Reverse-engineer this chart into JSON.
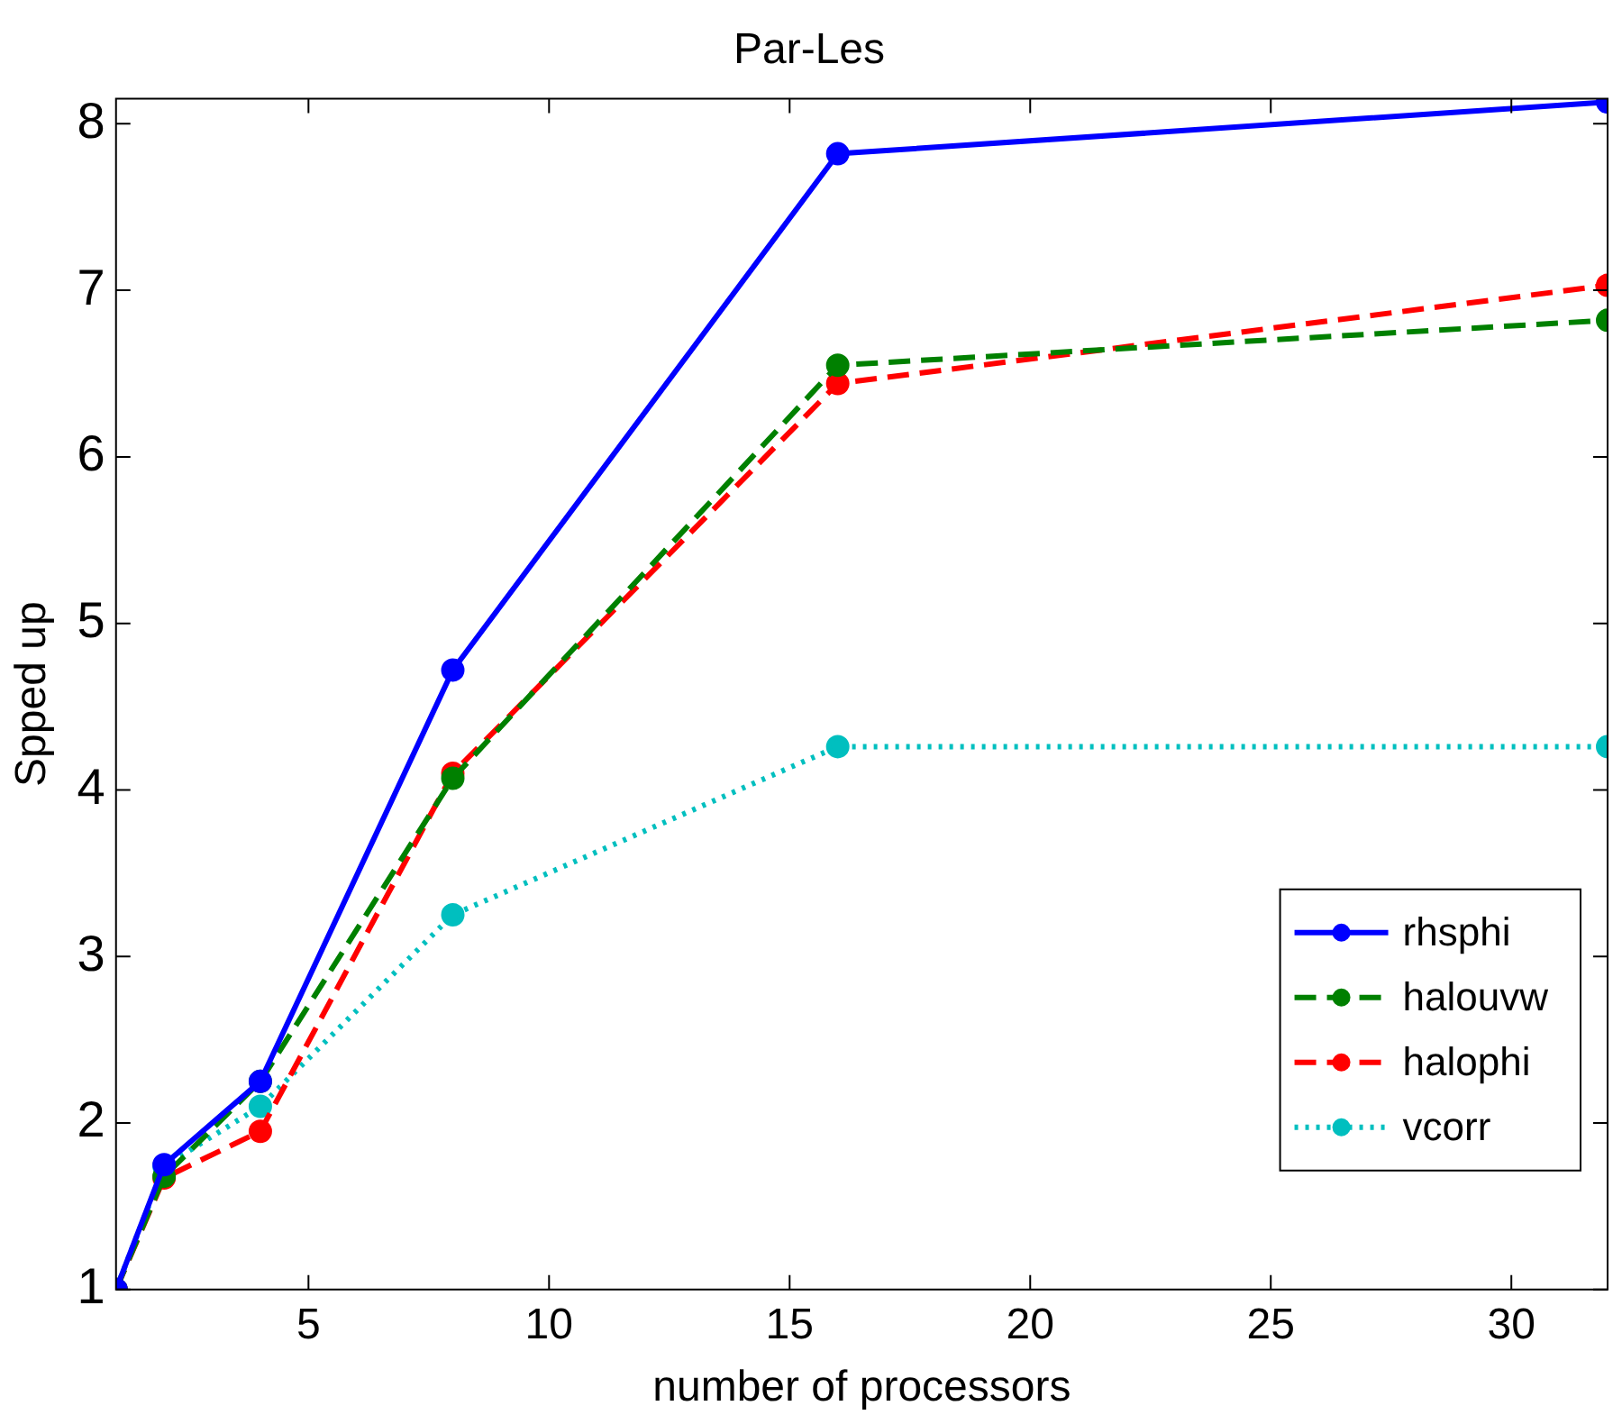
{
  "chart_data": {
    "type": "line",
    "title": "Par-Les",
    "xlabel": "number of processors",
    "ylabel": "Spped up",
    "x": [
      1,
      2,
      4,
      8,
      16,
      32
    ],
    "series": [
      {
        "name": "rhsphi",
        "color": "#0000ff",
        "line_style": "solid",
        "values": [
          1,
          1.75,
          2.25,
          4.72,
          7.82,
          8.13
        ]
      },
      {
        "name": "halouvw",
        "color": "#008000",
        "line_style": "dashed",
        "values": [
          1,
          1.68,
          2.25,
          4.07,
          6.55,
          6.82
        ]
      },
      {
        "name": "halophi",
        "color": "#ff0000",
        "line_style": "dashed",
        "values": [
          1,
          1.67,
          1.95,
          4.1,
          6.44,
          7.03
        ]
      },
      {
        "name": "vcorr",
        "color": "#00bfbf",
        "line_style": "dotted",
        "values": [
          1,
          1.74,
          2.1,
          3.25,
          4.26,
          4.26
        ]
      }
    ],
    "xlim": [
      1,
      32
    ],
    "xticks": [
      5,
      10,
      15,
      20,
      25,
      30
    ],
    "ylim": [
      1,
      8.15
    ],
    "yticks": [
      1,
      2,
      3,
      4,
      5,
      6,
      7,
      8
    ],
    "grid": false,
    "legend": "bottom right",
    "marker": "circle"
  }
}
